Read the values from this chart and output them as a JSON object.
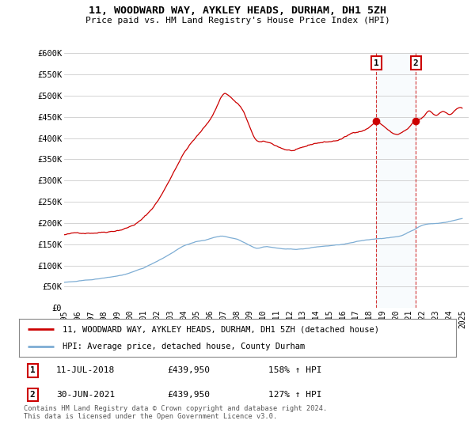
{
  "title": "11, WOODWARD WAY, AYKLEY HEADS, DURHAM, DH1 5ZH",
  "subtitle": "Price paid vs. HM Land Registry's House Price Index (HPI)",
  "legend_line1": "11, WOODWARD WAY, AYKLEY HEADS, DURHAM, DH1 5ZH (detached house)",
  "legend_line2": "HPI: Average price, detached house, County Durham",
  "annotation1_date": "11-JUL-2018",
  "annotation1_price": "£439,950",
  "annotation1_hpi": "158% ↑ HPI",
  "annotation2_date": "30-JUN-2021",
  "annotation2_price": "£439,950",
  "annotation2_hpi": "127% ↑ HPI",
  "footer": "Contains HM Land Registry data © Crown copyright and database right 2024.\nThis data is licensed under the Open Government Licence v3.0.",
  "ylim": [
    0,
    600000
  ],
  "yticks": [
    0,
    50000,
    100000,
    150000,
    200000,
    250000,
    300000,
    350000,
    400000,
    450000,
    500000,
    550000,
    600000
  ],
  "ytick_labels": [
    "£0",
    "£50K",
    "£100K",
    "£150K",
    "£200K",
    "£250K",
    "£300K",
    "£350K",
    "£400K",
    "£450K",
    "£500K",
    "£550K",
    "£600K"
  ],
  "red_color": "#cc0000",
  "blue_color": "#7dadd4",
  "marker1_x": 2018.53,
  "marker2_x": 2021.5,
  "marker1_y": 439950,
  "marker2_y": 439950,
  "xlim_start": 1995.0,
  "xlim_end": 2025.5
}
